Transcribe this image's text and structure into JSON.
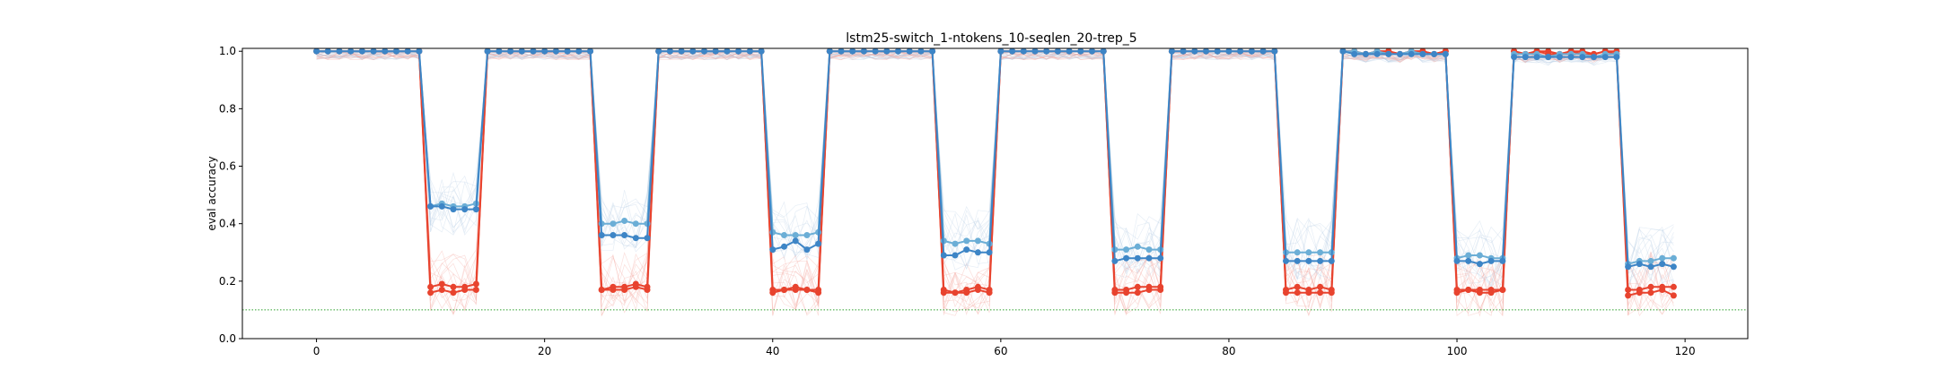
{
  "chart_data": {
    "type": "line",
    "title": "lstm25-switch_1-ntokens_10-seqlen_20-trep_5",
    "xlabel": "",
    "ylabel": "eval accuracy",
    "xlim": [
      -6.5,
      125.5
    ],
    "ylim": [
      0.0,
      1.01
    ],
    "xticks": [
      0,
      20,
      40,
      60,
      80,
      100,
      120
    ],
    "xtick_labels": [
      "0",
      "20",
      "40",
      "60",
      "80",
      "100",
      "120"
    ],
    "yticks": [
      0.0,
      0.2,
      0.4,
      0.6,
      0.8,
      1.0
    ],
    "ytick_labels": [
      "0.0",
      "0.2",
      "0.4",
      "0.6",
      "0.8",
      "1.0"
    ],
    "grid": false,
    "legend": "none",
    "reference_line": {
      "y": 0.1,
      "color": "#2ca02c",
      "style": "dotted"
    },
    "colors": {
      "red": "#e8432e",
      "blue_dark": "#3d85c6",
      "blue_light": "#6baed6",
      "faint_red": "#f4a39a",
      "faint_blue": "#b7cfe6"
    },
    "x": [
      0,
      1,
      2,
      3,
      4,
      5,
      6,
      7,
      8,
      9,
      10,
      11,
      12,
      13,
      14,
      15,
      16,
      17,
      18,
      19,
      20,
      21,
      22,
      23,
      24,
      25,
      26,
      27,
      28,
      29,
      30,
      31,
      32,
      33,
      34,
      35,
      36,
      37,
      38,
      39,
      40,
      41,
      42,
      43,
      44,
      45,
      46,
      47,
      48,
      49,
      50,
      51,
      52,
      53,
      54,
      55,
      56,
      57,
      58,
      59,
      60,
      61,
      62,
      63,
      64,
      65,
      66,
      67,
      68,
      69,
      70,
      71,
      72,
      73,
      74,
      75,
      76,
      77,
      78,
      79,
      80,
      81,
      82,
      83,
      84,
      85,
      86,
      87,
      88,
      89,
      90,
      91,
      92,
      93,
      94,
      95,
      96,
      97,
      98,
      99,
      100,
      101,
      102,
      103,
      104,
      105,
      106,
      107,
      108,
      109,
      110,
      111,
      112,
      113,
      114,
      115,
      116,
      117,
      118,
      119
    ],
    "series": [
      {
        "color": "red",
        "values": [
          1.0,
          1.0,
          1.0,
          1.0,
          1.0,
          1.0,
          1.0,
          1.0,
          1.0,
          1.0,
          0.18,
          0.19,
          0.18,
          0.18,
          0.19,
          1.0,
          1.0,
          1.0,
          1.0,
          1.0,
          1.0,
          1.0,
          1.0,
          1.0,
          1.0,
          0.17,
          0.18,
          0.18,
          0.19,
          0.18,
          1.0,
          1.0,
          1.0,
          1.0,
          1.0,
          1.0,
          1.0,
          1.0,
          1.0,
          1.0,
          0.17,
          0.17,
          0.18,
          0.17,
          0.17,
          1.0,
          1.0,
          1.0,
          1.0,
          1.0,
          1.0,
          1.0,
          1.0,
          1.0,
          1.0,
          0.17,
          0.16,
          0.17,
          0.18,
          0.17,
          1.0,
          1.0,
          1.0,
          1.0,
          1.0,
          1.0,
          1.0,
          1.0,
          1.0,
          1.0,
          0.17,
          0.17,
          0.18,
          0.18,
          0.18,
          1.0,
          1.0,
          1.0,
          1.0,
          1.0,
          1.0,
          1.0,
          1.0,
          1.0,
          1.0,
          0.17,
          0.18,
          0.17,
          0.18,
          0.17,
          1.0,
          1.0,
          0.99,
          1.0,
          1.0,
          0.99,
          1.0,
          1.0,
          0.99,
          1.0,
          0.17,
          0.17,
          0.17,
          0.17,
          0.17,
          1.0,
          0.99,
          1.0,
          1.0,
          0.99,
          1.0,
          1.0,
          0.99,
          1.0,
          1.0,
          0.17,
          0.17,
          0.18,
          0.18,
          0.18
        ]
      },
      {
        "color": "red",
        "values": [
          1.0,
          1.0,
          1.0,
          1.0,
          1.0,
          1.0,
          1.0,
          1.0,
          1.0,
          1.0,
          0.16,
          0.17,
          0.16,
          0.17,
          0.17,
          1.0,
          1.0,
          1.0,
          1.0,
          1.0,
          1.0,
          1.0,
          1.0,
          1.0,
          1.0,
          0.17,
          0.17,
          0.17,
          0.18,
          0.17,
          1.0,
          1.0,
          1.0,
          1.0,
          1.0,
          1.0,
          1.0,
          1.0,
          1.0,
          1.0,
          0.16,
          0.17,
          0.17,
          0.17,
          0.16,
          1.0,
          1.0,
          1.0,
          1.0,
          1.0,
          1.0,
          1.0,
          1.0,
          1.0,
          1.0,
          0.16,
          0.16,
          0.16,
          0.17,
          0.16,
          1.0,
          1.0,
          1.0,
          1.0,
          1.0,
          1.0,
          1.0,
          1.0,
          1.0,
          1.0,
          0.16,
          0.16,
          0.16,
          0.17,
          0.17,
          1.0,
          1.0,
          1.0,
          1.0,
          1.0,
          1.0,
          1.0,
          1.0,
          1.0,
          1.0,
          0.16,
          0.16,
          0.16,
          0.16,
          0.16,
          1.0,
          1.0,
          0.99,
          1.0,
          1.0,
          0.99,
          1.0,
          1.0,
          0.99,
          1.0,
          0.16,
          0.17,
          0.16,
          0.16,
          0.17,
          1.0,
          0.99,
          1.0,
          0.99,
          0.99,
          1.0,
          0.99,
          0.99,
          1.0,
          0.99,
          0.15,
          0.16,
          0.16,
          0.17,
          0.15
        ]
      },
      {
        "color": "blue_light",
        "values": [
          1.0,
          1.0,
          1.0,
          1.0,
          1.0,
          1.0,
          1.0,
          1.0,
          1.0,
          1.0,
          0.46,
          0.47,
          0.46,
          0.46,
          0.47,
          1.0,
          1.0,
          1.0,
          1.0,
          1.0,
          1.0,
          1.0,
          1.0,
          1.0,
          1.0,
          0.4,
          0.4,
          0.41,
          0.4,
          0.4,
          1.0,
          1.0,
          1.0,
          1.0,
          1.0,
          1.0,
          1.0,
          1.0,
          1.0,
          1.0,
          0.37,
          0.36,
          0.36,
          0.36,
          0.37,
          1.0,
          1.0,
          1.0,
          1.0,
          1.0,
          1.0,
          1.0,
          1.0,
          1.0,
          1.0,
          0.34,
          0.33,
          0.34,
          0.34,
          0.33,
          1.0,
          1.0,
          1.0,
          1.0,
          1.0,
          1.0,
          1.0,
          1.0,
          1.0,
          1.0,
          0.31,
          0.31,
          0.32,
          0.31,
          0.31,
          1.0,
          1.0,
          1.0,
          1.0,
          1.0,
          1.0,
          1.0,
          1.0,
          1.0,
          1.0,
          0.3,
          0.3,
          0.3,
          0.3,
          0.3,
          1.0,
          1.0,
          0.99,
          1.0,
          0.99,
          0.99,
          1.0,
          0.99,
          0.99,
          0.99,
          0.28,
          0.29,
          0.29,
          0.28,
          0.28,
          0.99,
          0.99,
          0.99,
          0.98,
          0.99,
          0.99,
          0.99,
          0.98,
          0.99,
          0.99,
          0.26,
          0.27,
          0.27,
          0.28,
          0.28
        ]
      },
      {
        "color": "blue_dark",
        "values": [
          1.0,
          1.0,
          1.0,
          1.0,
          1.0,
          1.0,
          1.0,
          1.0,
          1.0,
          1.0,
          0.46,
          0.46,
          0.45,
          0.45,
          0.45,
          1.0,
          1.0,
          1.0,
          1.0,
          1.0,
          1.0,
          1.0,
          1.0,
          1.0,
          1.0,
          0.36,
          0.36,
          0.36,
          0.35,
          0.35,
          1.0,
          1.0,
          1.0,
          1.0,
          1.0,
          1.0,
          1.0,
          1.0,
          1.0,
          1.0,
          0.31,
          0.32,
          0.34,
          0.31,
          0.33,
          1.0,
          1.0,
          1.0,
          1.0,
          1.0,
          1.0,
          1.0,
          1.0,
          1.0,
          1.0,
          0.29,
          0.29,
          0.31,
          0.3,
          0.3,
          1.0,
          1.0,
          1.0,
          1.0,
          1.0,
          1.0,
          1.0,
          1.0,
          1.0,
          1.0,
          0.27,
          0.28,
          0.28,
          0.28,
          0.28,
          1.0,
          1.0,
          1.0,
          1.0,
          1.0,
          1.0,
          1.0,
          1.0,
          1.0,
          1.0,
          0.27,
          0.27,
          0.27,
          0.27,
          0.27,
          1.0,
          0.99,
          0.99,
          0.99,
          0.99,
          0.99,
          0.99,
          0.99,
          0.99,
          0.99,
          0.27,
          0.27,
          0.26,
          0.27,
          0.27,
          0.98,
          0.98,
          0.98,
          0.98,
          0.98,
          0.98,
          0.98,
          0.98,
          0.98,
          0.98,
          0.25,
          0.26,
          0.25,
          0.26,
          0.25
        ]
      }
    ]
  }
}
